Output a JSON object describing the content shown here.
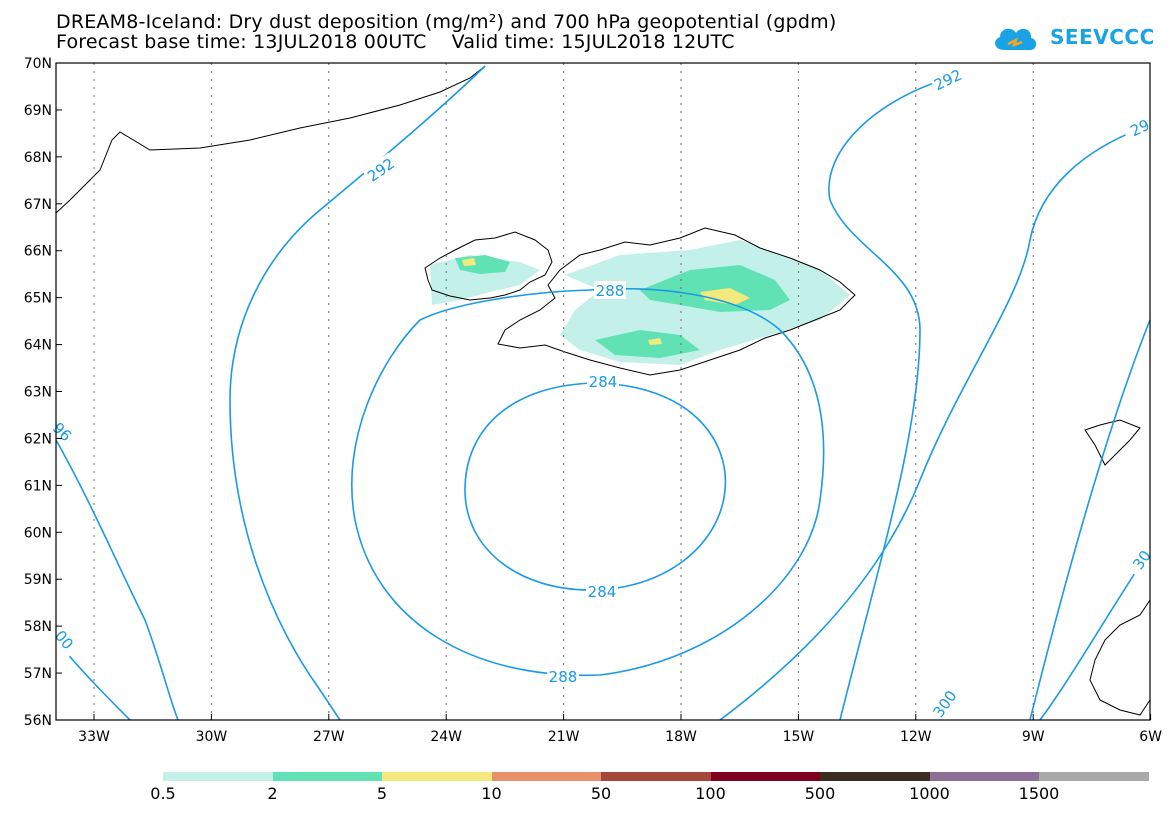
{
  "title_line1": "DREAM8-Iceland: Dry dust deposition (mg/m²) and 700 hPa geopotential (gpdm)",
  "title_line2": "Forecast base time: 13JUL2018 00UTC    Valid time: 15JUL2018 12UTC",
  "logo_text": "SEEVCCC",
  "lat_labels": [
    "70N",
    "69N",
    "68N",
    "67N",
    "66N",
    "65N",
    "64N",
    "63N",
    "62N",
    "61N",
    "60N",
    "59N",
    "58N",
    "57N",
    "56N"
  ],
  "lon_labels": [
    "33W",
    "30W",
    "27W",
    "24W",
    "21W",
    "18W",
    "15W",
    "12W",
    "9W",
    "6W"
  ],
  "contour_labels": [
    "292",
    "292",
    "29",
    "96",
    "288",
    "284",
    "284",
    "288",
    "00",
    "30",
    "300"
  ],
  "legend": {
    "colors": [
      "#c3f1ea",
      "#61e2b5",
      "#f4e97c",
      "#e8906a",
      "#a5473b",
      "#800020",
      "#3c2d22",
      "#8e6e97",
      "#a9a9a9"
    ],
    "labels": [
      "0.5",
      "2",
      "5",
      "10",
      "50",
      "100",
      "500",
      "1000",
      "1500"
    ]
  },
  "colors": {
    "contour": "#1a9ae6",
    "accent": "#19a3e6"
  }
}
